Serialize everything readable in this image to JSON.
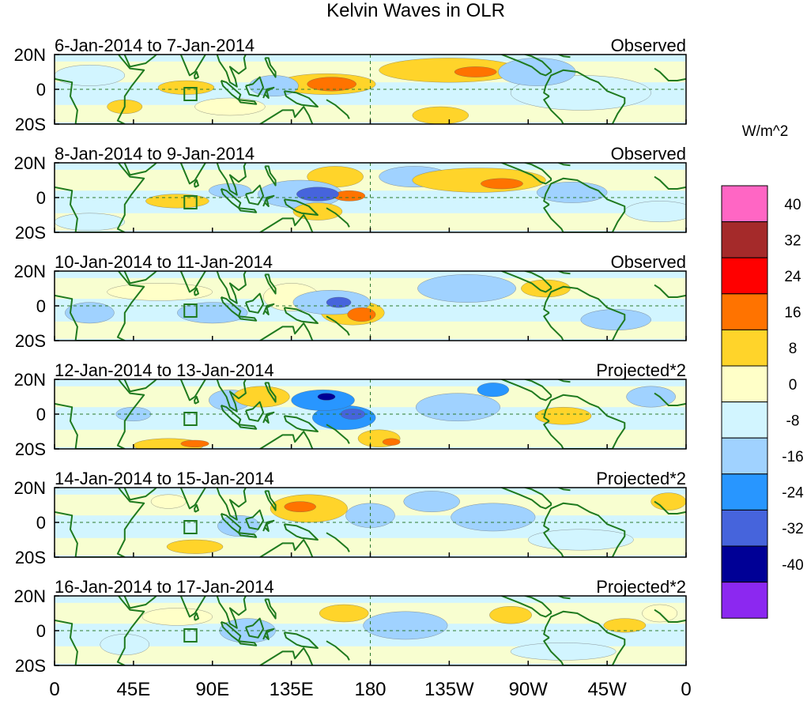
{
  "chart_data": {
    "type": "heatmap",
    "title": "Kelvin Waves in OLR",
    "variable": "OLR anomaly",
    "units": "W/m^2",
    "xlim": [
      0,
      360
    ],
    "x_ticks": [
      "0",
      "45E",
      "90E",
      "135E",
      "180",
      "135W",
      "90W",
      "45W",
      "0"
    ],
    "x_tick_values": [
      0,
      45,
      90,
      135,
      180,
      225,
      270,
      315,
      360
    ],
    "y_ticks": [
      "20N",
      "0",
      "20S"
    ],
    "y_tick_values": [
      20,
      0,
      -20
    ],
    "ylim": [
      -20,
      20
    ],
    "colorbar": {
      "levels": [
        "40",
        "32",
        "24",
        "16",
        "8",
        "0",
        "-8",
        "-16",
        "-24",
        "-32",
        "-40"
      ],
      "colors": [
        "#ff66c4",
        "#a52a2a",
        "#ff0000",
        "#ff7300",
        "#ffd42a",
        "#ffffc8",
        "#d2f5ff",
        "#a0d2ff",
        "#2896ff",
        "#4664dc",
        "#000096",
        "#8c28f0"
      ]
    },
    "panels": [
      {
        "date_range": "6-Jan-2014 to 7-Jan-2014",
        "kind": "Observed",
        "anomalies": [
          {
            "lon": 225,
            "lat": 11,
            "value": 14,
            "rlon": 40,
            "rlat": 7
          },
          {
            "lon": 240,
            "lat": 10,
            "value": 18,
            "rlon": 12,
            "rlat": 3
          },
          {
            "lon": 158,
            "lat": 3,
            "value": 18,
            "rlon": 14,
            "rlat": 4
          },
          {
            "lon": 155,
            "lat": 3,
            "value": 12,
            "rlon": 28,
            "rlat": 6
          },
          {
            "lon": 220,
            "lat": -15,
            "value": 14,
            "rlon": 16,
            "rlat": 5
          },
          {
            "lon": 125,
            "lat": 2,
            "value": -14,
            "rlon": 14,
            "rlat": 6
          },
          {
            "lon": 275,
            "lat": 10,
            "value": -14,
            "rlon": 22,
            "rlat": 8
          },
          {
            "lon": 75,
            "lat": 1,
            "value": 9,
            "rlon": 16,
            "rlat": 4
          },
          {
            "lon": 40,
            "lat": -10,
            "value": 9,
            "rlon": 10,
            "rlat": 4
          },
          {
            "lon": 100,
            "lat": -10,
            "value": 5,
            "rlon": 20,
            "rlat": 5
          },
          {
            "lon": 300,
            "lat": -2,
            "value": -6,
            "rlon": 40,
            "rlat": 10
          },
          {
            "lon": 20,
            "lat": 8,
            "value": -6,
            "rlon": 20,
            "rlat": 6
          }
        ]
      },
      {
        "date_range": "8-Jan-2014 to 9-Jan-2014",
        "kind": "Observed",
        "anomalies": [
          {
            "lon": 242,
            "lat": 10,
            "value": 14,
            "rlon": 38,
            "rlat": 7
          },
          {
            "lon": 255,
            "lat": 8,
            "value": 18,
            "rlon": 12,
            "rlat": 3
          },
          {
            "lon": 160,
            "lat": 12,
            "value": 10,
            "rlon": 16,
            "rlat": 6
          },
          {
            "lon": 168,
            "lat": 1,
            "value": 18,
            "rlon": 9,
            "rlat": 3
          },
          {
            "lon": 150,
            "lat": 2,
            "value": -26,
            "rlon": 12,
            "rlat": 4
          },
          {
            "lon": 140,
            "lat": 2,
            "value": -14,
            "rlon": 24,
            "rlat": 8
          },
          {
            "lon": 150,
            "lat": -8,
            "value": 14,
            "rlon": 14,
            "rlat": 5
          },
          {
            "lon": 70,
            "lat": -2,
            "value": 10,
            "rlon": 18,
            "rlat": 4
          },
          {
            "lon": 100,
            "lat": 4,
            "value": -10,
            "rlon": 12,
            "rlat": 4
          },
          {
            "lon": 205,
            "lat": 12,
            "value": -8,
            "rlon": 20,
            "rlat": 6
          },
          {
            "lon": 295,
            "lat": 3,
            "value": -10,
            "rlon": 20,
            "rlat": 6
          },
          {
            "lon": 345,
            "lat": -8,
            "value": -6,
            "rlon": 20,
            "rlat": 6
          },
          {
            "lon": 20,
            "lat": -14,
            "value": -6,
            "rlon": 20,
            "rlat": 5
          }
        ]
      },
      {
        "date_range": "10-Jan-2014 to 11-Jan-2014",
        "kind": "Observed",
        "anomalies": [
          {
            "lon": 162,
            "lat": 2,
            "value": -30,
            "rlon": 7,
            "rlat": 3
          },
          {
            "lon": 158,
            "lat": 2,
            "value": -14,
            "rlon": 22,
            "rlat": 7
          },
          {
            "lon": 175,
            "lat": -5,
            "value": 18,
            "rlon": 8,
            "rlat": 4
          },
          {
            "lon": 170,
            "lat": -4,
            "value": 10,
            "rlon": 18,
            "rlat": 7
          },
          {
            "lon": 135,
            "lat": 5,
            "value": 8,
            "rlon": 16,
            "rlat": 8
          },
          {
            "lon": 280,
            "lat": 10,
            "value": 10,
            "rlon": 14,
            "rlat": 5
          },
          {
            "lon": 235,
            "lat": 10,
            "value": -10,
            "rlon": 28,
            "rlat": 8
          },
          {
            "lon": 90,
            "lat": -4,
            "value": -10,
            "rlon": 20,
            "rlat": 6
          },
          {
            "lon": 20,
            "lat": -4,
            "value": -8,
            "rlon": 14,
            "rlat": 6
          },
          {
            "lon": 320,
            "lat": -8,
            "value": -8,
            "rlon": 20,
            "rlat": 6
          },
          {
            "lon": 60,
            "lat": 8,
            "value": 5,
            "rlon": 30,
            "rlat": 5
          }
        ]
      },
      {
        "date_range": "12-Jan-2014 to 13-Jan-2014",
        "kind": "Projected*2",
        "anomalies": [
          {
            "lon": 155,
            "lat": 10,
            "value": -38,
            "rlon": 5,
            "rlat": 2
          },
          {
            "lon": 153,
            "lat": 8,
            "value": -22,
            "rlon": 18,
            "rlat": 6
          },
          {
            "lon": 170,
            "lat": 0,
            "value": -30,
            "rlon": 7,
            "rlat": 3
          },
          {
            "lon": 165,
            "lat": -2,
            "value": -16,
            "rlon": 18,
            "rlat": 7
          },
          {
            "lon": 100,
            "lat": 8,
            "value": -12,
            "rlon": 12,
            "rlat": 6
          },
          {
            "lon": 118,
            "lat": 10,
            "value": 12,
            "rlon": 16,
            "rlat": 6
          },
          {
            "lon": 185,
            "lat": -14,
            "value": 16,
            "rlon": 12,
            "rlat": 5
          },
          {
            "lon": 192,
            "lat": -16,
            "value": 22,
            "rlon": 5,
            "rlat": 2
          },
          {
            "lon": 65,
            "lat": -18,
            "value": 16,
            "rlon": 20,
            "rlat": 4
          },
          {
            "lon": 80,
            "lat": -17,
            "value": 22,
            "rlon": 8,
            "rlat": 2
          },
          {
            "lon": 45,
            "lat": 0,
            "value": -12,
            "rlon": 10,
            "rlat": 4
          },
          {
            "lon": 250,
            "lat": 14,
            "value": -16,
            "rlon": 9,
            "rlat": 4
          },
          {
            "lon": 290,
            "lat": -1,
            "value": 14,
            "rlon": 16,
            "rlat": 5
          },
          {
            "lon": 230,
            "lat": 4,
            "value": -8,
            "rlon": 24,
            "rlat": 8
          },
          {
            "lon": 340,
            "lat": 10,
            "value": -8,
            "rlon": 14,
            "rlat": 6
          }
        ]
      },
      {
        "date_range": "14-Jan-2014 to 15-Jan-2014",
        "kind": "Projected*2",
        "anomalies": [
          {
            "lon": 145,
            "lat": 8,
            "value": 14,
            "rlon": 22,
            "rlat": 8
          },
          {
            "lon": 140,
            "lat": 9,
            "value": 18,
            "rlon": 9,
            "rlat": 3
          },
          {
            "lon": 80,
            "lat": -14,
            "value": 10,
            "rlon": 16,
            "rlat": 4
          },
          {
            "lon": 65,
            "lat": 12,
            "value": 8,
            "rlon": 10,
            "rlat": 4
          },
          {
            "lon": 180,
            "lat": 4,
            "value": -10,
            "rlon": 14,
            "rlat": 7
          },
          {
            "lon": 105,
            "lat": -2,
            "value": -10,
            "rlon": 12,
            "rlat": 6
          },
          {
            "lon": 215,
            "lat": 12,
            "value": -10,
            "rlon": 16,
            "rlat": 6
          },
          {
            "lon": 250,
            "lat": 3,
            "value": -8,
            "rlon": 24,
            "rlat": 8
          },
          {
            "lon": 350,
            "lat": 12,
            "value": 10,
            "rlon": 10,
            "rlat": 5
          },
          {
            "lon": 300,
            "lat": -10,
            "value": -6,
            "rlon": 30,
            "rlat": 6
          }
        ]
      },
      {
        "date_range": "16-Jan-2014 to 17-Jan-2014",
        "kind": "Projected*2",
        "anomalies": [
          {
            "lon": 165,
            "lat": 10,
            "value": 12,
            "rlon": 14,
            "rlat": 5
          },
          {
            "lon": 260,
            "lat": 9,
            "value": 10,
            "rlon": 12,
            "rlat": 5
          },
          {
            "lon": 325,
            "lat": 3,
            "value": 10,
            "rlon": 12,
            "rlat": 4
          },
          {
            "lon": 110,
            "lat": 0,
            "value": -8,
            "rlon": 16,
            "rlat": 7
          },
          {
            "lon": 200,
            "lat": 3,
            "value": -8,
            "rlon": 24,
            "rlat": 8
          },
          {
            "lon": 40,
            "lat": -8,
            "value": -6,
            "rlon": 14,
            "rlat": 6
          },
          {
            "lon": 70,
            "lat": 8,
            "value": 6,
            "rlon": 20,
            "rlat": 5
          },
          {
            "lon": 345,
            "lat": 10,
            "value": 6,
            "rlon": 10,
            "rlat": 5
          },
          {
            "lon": 290,
            "lat": -12,
            "value": -6,
            "rlon": 30,
            "rlat": 5
          }
        ]
      }
    ]
  }
}
